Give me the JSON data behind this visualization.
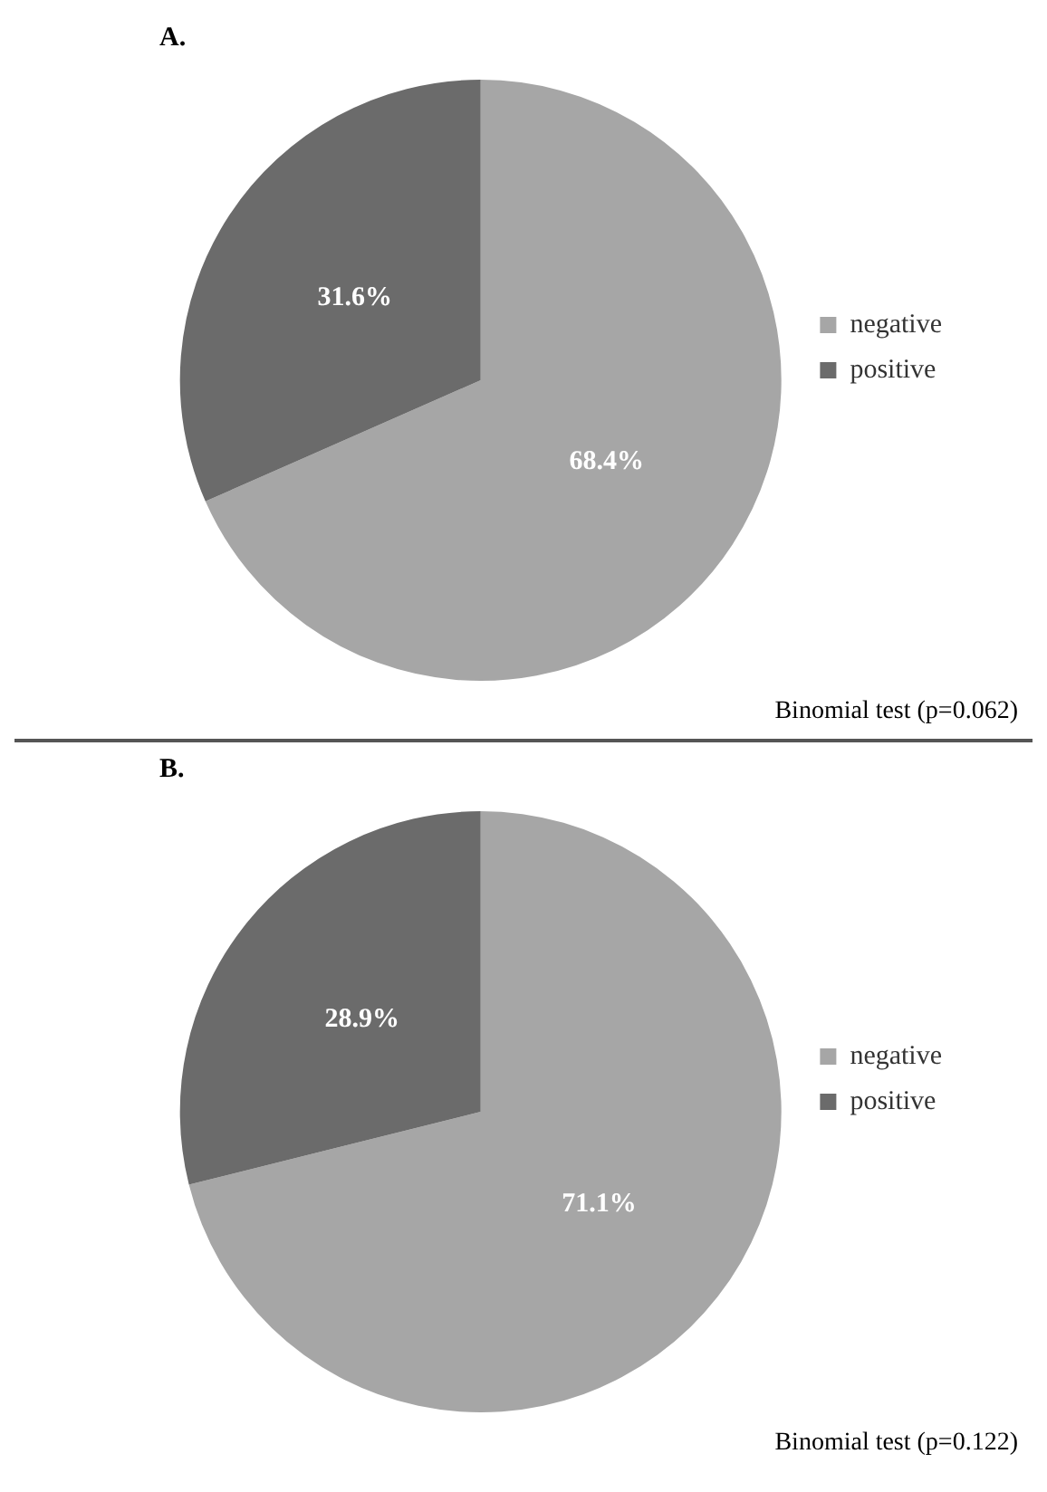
{
  "chart_data": [
    {
      "type": "pie",
      "title": "A.",
      "categories": [
        "negative",
        "positive"
      ],
      "values": [
        68.4,
        31.6
      ],
      "colors": [
        "#a6a6a6",
        "#6b6b6b"
      ],
      "value_labels": [
        "68.4%",
        "31.6%"
      ],
      "legend": "right",
      "annotations": [
        "Binomial test (p=0.062)"
      ]
    },
    {
      "type": "pie",
      "title": "B.",
      "categories": [
        "negative",
        "positive"
      ],
      "values": [
        71.1,
        28.9
      ],
      "colors": [
        "#a6a6a6",
        "#6b6b6b"
      ],
      "value_labels": [
        "71.1%",
        "28.9%"
      ],
      "legend": "right",
      "annotations": [
        "Binomial test (p=0.122)"
      ]
    }
  ]
}
